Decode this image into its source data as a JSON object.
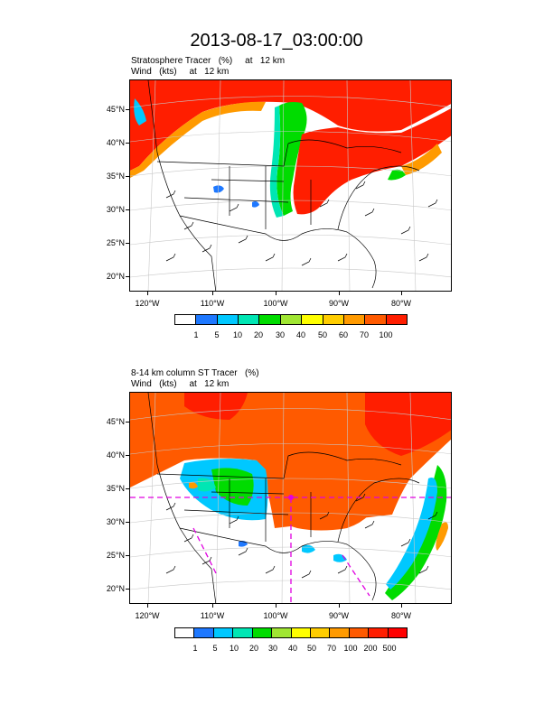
{
  "title": "2013-08-17_03:00:00",
  "panels": [
    {
      "subtitle_line1": "Stratosphere Tracer   (%)     at   12 km",
      "subtitle_line2": "Wind   (kts)     at   12 km",
      "lat_labels": [
        "45°N",
        "40°N",
        "35°N",
        "30°N",
        "25°N",
        "20°N"
      ],
      "lon_labels": [
        "120°W",
        "110°W",
        "100°W",
        "90°W",
        "80°W"
      ],
      "colorbar_labels": [
        "1",
        "5",
        "10",
        "20",
        "30",
        "40",
        "50",
        "60",
        "70",
        "100"
      ]
    },
    {
      "subtitle_line1": "8-14 km column ST Tracer   (%)",
      "subtitle_line2": "Wind   (kts)     at   12 km",
      "lat_labels": [
        "45°N",
        "40°N",
        "35°N",
        "30°N",
        "25°N",
        "20°N"
      ],
      "lon_labels": [
        "120°W",
        "110°W",
        "100°W",
        "90°W",
        "80°W"
      ],
      "colorbar_labels": [
        "1",
        "5",
        "10",
        "20",
        "30",
        "40",
        "50",
        "70",
        "100",
        "200",
        "500"
      ]
    }
  ],
  "colorbar_colors": [
    "#ffffff",
    "#1e78ff",
    "#00c8ff",
    "#00e6b4",
    "#00dc00",
    "#a0e632",
    "#ffff00",
    "#ffcd00",
    "#ff9a00",
    "#ff5a00",
    "#ff1e00"
  ],
  "field_colors": {
    "max": "#ff1e00",
    "high": "#ff5a00",
    "orange": "#ff9a00",
    "yellow": "#ffcd00",
    "green": "#00dc00",
    "teal": "#00e6b4",
    "cyan": "#00c8ff",
    "blue": "#1e78ff"
  },
  "trajectory_color": "#e000e0"
}
